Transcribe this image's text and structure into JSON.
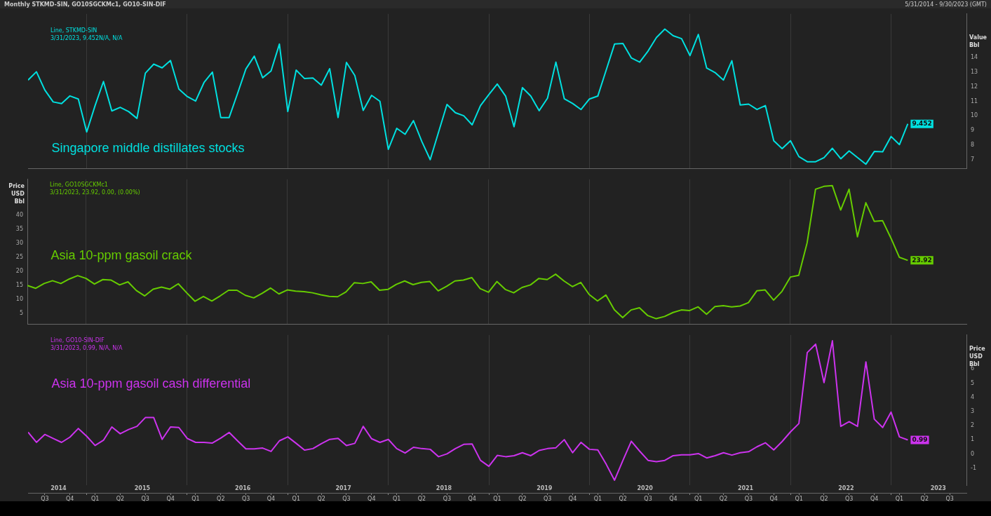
{
  "chart_data": [
    {
      "type": "line",
      "title": "Monthly STKMD-SIN, GO10SGCKMc1, GO10-SIN-DIF",
      "subtitle": "5/31/2014 - 9/30/2023 (GMT)",
      "ylabel": "Value\nBbl",
      "annotations": [
        "Line, STKMD-SIN",
        "3/31/2023, 9.452N/A, N/A"
      ],
      "x": [
        "2014-06",
        "2014-07",
        "2014-08",
        "2014-09",
        "2014-10",
        "2014-11",
        "2014-12",
        "2015-01",
        "2015-02",
        "2015-03",
        "2015-04",
        "2015-05",
        "2015-06",
        "2015-07",
        "2015-08",
        "2015-09",
        "2015-10",
        "2015-11",
        "2015-12",
        "2016-01",
        "2016-02",
        "2016-03",
        "2016-04",
        "2016-05",
        "2016-06",
        "2016-07",
        "2016-08",
        "2016-09",
        "2016-10",
        "2016-11",
        "2016-12",
        "2017-01",
        "2017-02",
        "2017-03",
        "2017-04",
        "2017-05",
        "2017-06",
        "2017-07",
        "2017-08",
        "2017-09",
        "2017-10",
        "2017-11",
        "2017-12",
        "2018-01",
        "2018-02",
        "2018-03",
        "2018-04",
        "2018-05",
        "2018-06",
        "2018-07",
        "2018-08",
        "2018-09",
        "2018-10",
        "2018-11",
        "2018-12",
        "2019-01",
        "2019-02",
        "2019-03",
        "2019-04",
        "2019-05",
        "2019-06",
        "2019-07",
        "2019-08",
        "2019-09",
        "2019-10",
        "2019-11",
        "2019-12",
        "2020-01",
        "2020-02",
        "2020-03",
        "2020-04",
        "2020-05",
        "2020-06",
        "2020-07",
        "2020-08",
        "2020-09",
        "2020-10",
        "2020-11",
        "2020-12",
        "2021-01",
        "2021-02",
        "2021-03",
        "2021-04",
        "2021-05",
        "2021-06",
        "2021-07",
        "2021-08",
        "2021-09",
        "2021-10",
        "2021-11",
        "2021-12",
        "2022-01",
        "2022-02",
        "2022-03",
        "2022-04",
        "2022-05",
        "2022-06",
        "2022-07",
        "2022-08",
        "2022-09",
        "2022-10",
        "2022-11",
        "2022-12",
        "2023-01",
        "2023-02",
        "2023-03"
      ],
      "series": [
        {
          "name": "Singapore middle distillates stocks",
          "color": "#00e0e0",
          "values": [
            12.46,
            13.03,
            11.78,
            10.96,
            10.85,
            11.37,
            11.16,
            8.9,
            10.71,
            12.36,
            10.34,
            10.59,
            10.3,
            9.83,
            12.93,
            13.55,
            13.3,
            13.8,
            11.84,
            11.33,
            11.02,
            12.29,
            13.01,
            9.89,
            9.89,
            11.53,
            13.22,
            14.1,
            12.62,
            13.08,
            14.93,
            10.3,
            13.14,
            12.56,
            12.6,
            12.11,
            13.24,
            9.89,
            13.67,
            12.77,
            10.38,
            11.41,
            11.0,
            7.71,
            9.15,
            8.74,
            9.68,
            8.24,
            7.0,
            8.9,
            10.79,
            10.22,
            10.01,
            9.39,
            10.71,
            11.47,
            12.19,
            11.36,
            9.26,
            11.94,
            11.36,
            10.36,
            11.22,
            13.69,
            11.18,
            10.85,
            10.44,
            11.16,
            11.36,
            13.14,
            14.93,
            14.97,
            13.98,
            13.69,
            14.45,
            15.38,
            15.96,
            15.5,
            15.3,
            14.14,
            15.59,
            13.28,
            12.97,
            12.46,
            13.79,
            10.75,
            10.81,
            10.44,
            10.71,
            8.3,
            7.76,
            8.3,
            7.21,
            6.86,
            6.86,
            7.14,
            7.78,
            7.06,
            7.6,
            7.14,
            6.69,
            7.56,
            7.54,
            8.59,
            8.03,
            9.452
          ],
          "value_labels": [
            null,
            null,
            null,
            null,
            null,
            null,
            null,
            null,
            null,
            null,
            null,
            null,
            null,
            null,
            null,
            null,
            null,
            null,
            null,
            null,
            null,
            null,
            null,
            null,
            null,
            null,
            null,
            null,
            null,
            null,
            null,
            null,
            null,
            null,
            null,
            null,
            null,
            null,
            null,
            null,
            null,
            null,
            null,
            null,
            null,
            null,
            null,
            null,
            null,
            null,
            null,
            null,
            null,
            null,
            null,
            null,
            null,
            null,
            null,
            null,
            null,
            null,
            null,
            null,
            null,
            null,
            null,
            null,
            null,
            null,
            null,
            null,
            null,
            null,
            null,
            null,
            null,
            null,
            null,
            null,
            null,
            null,
            null,
            null,
            null,
            null,
            null,
            null,
            null,
            null,
            null,
            null,
            null,
            null,
            null,
            null,
            null,
            null,
            null,
            null,
            null,
            null,
            null,
            null,
            null,
            "9.452"
          ]
        }
      ],
      "xlim": [
        "2014-06",
        "2023-10"
      ],
      "xticks": [
        {
          "value": "2015-01",
          "label": null
        },
        {
          "value": "2016-01",
          "label": null
        },
        {
          "value": "2017-01",
          "label": null
        },
        {
          "value": "2018-01",
          "label": null
        },
        {
          "value": "2019-01",
          "label": null
        },
        {
          "value": "2020-01",
          "label": null
        },
        {
          "value": "2021-01",
          "label": null
        },
        {
          "value": "2022-01",
          "label": null
        },
        {
          "value": "2023-01",
          "label": null
        }
      ],
      "ylim": [
        6.4,
        17
      ],
      "yticks": [
        7,
        8,
        9,
        10,
        11,
        12,
        13,
        14
      ],
      "grid": "x",
      "tick_labels": "y"
    },
    {
      "type": "line",
      "ylabel": "Price\nUSD\nBbl",
      "annotations": [
        "Line, GO10SGCKMc1",
        "3/31/2023, 23.92, 0.00, (0.00%)"
      ],
      "x": [
        "2014-06",
        "2014-07",
        "2014-08",
        "2014-09",
        "2014-10",
        "2014-11",
        "2014-12",
        "2015-01",
        "2015-02",
        "2015-03",
        "2015-04",
        "2015-05",
        "2015-06",
        "2015-07",
        "2015-08",
        "2015-09",
        "2015-10",
        "2015-11",
        "2015-12",
        "2016-01",
        "2016-02",
        "2016-03",
        "2016-04",
        "2016-05",
        "2016-06",
        "2016-07",
        "2016-08",
        "2016-09",
        "2016-10",
        "2016-11",
        "2016-12",
        "2017-01",
        "2017-02",
        "2017-03",
        "2017-04",
        "2017-05",
        "2017-06",
        "2017-07",
        "2017-08",
        "2017-09",
        "2017-10",
        "2017-11",
        "2017-12",
        "2018-01",
        "2018-02",
        "2018-03",
        "2018-04",
        "2018-05",
        "2018-06",
        "2018-07",
        "2018-08",
        "2018-09",
        "2018-10",
        "2018-11",
        "2018-12",
        "2019-01",
        "2019-02",
        "2019-03",
        "2019-04",
        "2019-05",
        "2019-06",
        "2019-07",
        "2019-08",
        "2019-09",
        "2019-10",
        "2019-11",
        "2019-12",
        "2020-01",
        "2020-02",
        "2020-03",
        "2020-04",
        "2020-05",
        "2020-06",
        "2020-07",
        "2020-08",
        "2020-09",
        "2020-10",
        "2020-11",
        "2020-12",
        "2021-01",
        "2021-02",
        "2021-03",
        "2021-04",
        "2021-05",
        "2021-06",
        "2021-07",
        "2021-08",
        "2021-09",
        "2021-10",
        "2021-11",
        "2021-12",
        "2022-01",
        "2022-02",
        "2022-03",
        "2022-04",
        "2022-05",
        "2022-06",
        "2022-07",
        "2022-08",
        "2022-09",
        "2022-10",
        "2022-11",
        "2022-12",
        "2023-01",
        "2023-02",
        "2023-03"
      ],
      "series": [
        {
          "name": "Asia 10-ppm gasoil crack",
          "color": "#66cc00",
          "values": [
            15.0,
            14.0,
            15.7,
            16.7,
            15.7,
            17.3,
            18.5,
            17.5,
            15.5,
            17.1,
            16.9,
            15.2,
            16.3,
            13.2,
            11.3,
            13.7,
            14.4,
            13.7,
            15.6,
            12.4,
            9.4,
            11.1,
            9.5,
            11.3,
            13.3,
            13.3,
            11.5,
            10.6,
            12.2,
            14.1,
            12.0,
            13.4,
            13.0,
            12.8,
            12.4,
            11.7,
            11.1,
            11.0,
            12.7,
            16.0,
            15.7,
            16.3,
            13.3,
            13.6,
            15.4,
            16.6,
            15.3,
            16.1,
            16.4,
            13.1,
            14.7,
            16.6,
            16.9,
            17.8,
            13.9,
            12.6,
            16.4,
            13.6,
            12.4,
            14.3,
            15.2,
            17.5,
            17.1,
            19.0,
            16.6,
            14.6,
            16.1,
            11.8,
            9.5,
            11.6,
            6.4,
            3.6,
            6.3,
            7.1,
            4.3,
            3.2,
            4.0,
            5.4,
            6.3,
            6.1,
            7.4,
            4.8,
            7.5,
            7.8,
            7.4,
            7.7,
            8.9,
            13.1,
            13.4,
            9.8,
            12.9,
            18.0,
            18.6,
            30.2,
            49.2,
            50.2,
            50.5,
            41.8,
            49.2,
            32.3,
            44.4,
            37.8,
            38.0,
            31.8,
            25.0,
            23.92
          ],
          "value_labels": [
            null,
            null,
            null,
            null,
            null,
            null,
            null,
            null,
            null,
            null,
            null,
            null,
            null,
            null,
            null,
            null,
            null,
            null,
            null,
            null,
            null,
            null,
            null,
            null,
            null,
            null,
            null,
            null,
            null,
            null,
            null,
            null,
            null,
            null,
            null,
            null,
            null,
            null,
            null,
            null,
            null,
            null,
            null,
            null,
            null,
            null,
            null,
            null,
            null,
            null,
            null,
            null,
            null,
            null,
            null,
            null,
            null,
            null,
            null,
            null,
            null,
            null,
            null,
            null,
            null,
            null,
            null,
            null,
            null,
            null,
            null,
            null,
            null,
            null,
            null,
            null,
            null,
            null,
            null,
            null,
            null,
            null,
            null,
            null,
            null,
            null,
            null,
            null,
            null,
            null,
            null,
            null,
            null,
            null,
            null,
            null,
            null,
            null,
            null,
            null,
            null,
            null,
            null,
            null,
            null,
            "23.92"
          ]
        }
      ],
      "xlim": [
        "2014-06",
        "2023-10"
      ],
      "xticks": [
        {
          "value": "2015-01",
          "label": null
        },
        {
          "value": "2016-01",
          "label": null
        },
        {
          "value": "2017-01",
          "label": null
        },
        {
          "value": "2018-01",
          "label": null
        },
        {
          "value": "2019-01",
          "label": null
        },
        {
          "value": "2020-01",
          "label": null
        },
        {
          "value": "2021-01",
          "label": null
        },
        {
          "value": "2022-01",
          "label": null
        },
        {
          "value": "2023-01",
          "label": null
        }
      ],
      "ylim": [
        1.3,
        52.7
      ],
      "yticks": [
        5,
        10,
        15,
        20,
        25,
        30,
        35,
        40
      ],
      "grid": "x",
      "tick_labels": "y"
    },
    {
      "type": "line",
      "ylabel": "Price\nUSD\nBbl",
      "annotations": [
        "Line, GO10-SIN-DIF",
        "3/31/2023, 0.99, N/A, N/A"
      ],
      "x": [
        "2014-06",
        "2014-07",
        "2014-08",
        "2014-09",
        "2014-10",
        "2014-11",
        "2014-12",
        "2015-01",
        "2015-02",
        "2015-03",
        "2015-04",
        "2015-05",
        "2015-06",
        "2015-07",
        "2015-08",
        "2015-09",
        "2015-10",
        "2015-11",
        "2015-12",
        "2016-01",
        "2016-02",
        "2016-03",
        "2016-04",
        "2016-05",
        "2016-06",
        "2016-07",
        "2016-08",
        "2016-09",
        "2016-10",
        "2016-11",
        "2016-12",
        "2017-01",
        "2017-02",
        "2017-03",
        "2017-04",
        "2017-05",
        "2017-06",
        "2017-07",
        "2017-08",
        "2017-09",
        "2017-10",
        "2017-11",
        "2017-12",
        "2018-01",
        "2018-02",
        "2018-03",
        "2018-04",
        "2018-05",
        "2018-06",
        "2018-07",
        "2018-08",
        "2018-09",
        "2018-10",
        "2018-11",
        "2018-12",
        "2019-01",
        "2019-02",
        "2019-03",
        "2019-04",
        "2019-05",
        "2019-06",
        "2019-07",
        "2019-08",
        "2019-09",
        "2019-10",
        "2019-11",
        "2019-12",
        "2020-01",
        "2020-02",
        "2020-03",
        "2020-04",
        "2020-05",
        "2020-06",
        "2020-07",
        "2020-08",
        "2020-09",
        "2020-10",
        "2020-11",
        "2020-12",
        "2021-01",
        "2021-02",
        "2021-03",
        "2021-04",
        "2021-05",
        "2021-06",
        "2021-07",
        "2021-08",
        "2021-09",
        "2021-10",
        "2021-11",
        "2021-12",
        "2022-01",
        "2022-02",
        "2022-03",
        "2022-04",
        "2022-05",
        "2022-06",
        "2022-07",
        "2022-08",
        "2022-09",
        "2022-10",
        "2022-11",
        "2022-12",
        "2023-01",
        "2023-02",
        "2023-03"
      ],
      "series": [
        {
          "name": "Asia 10-ppm gasoil cash differential",
          "color": "#cc33ee",
          "values": [
            1.54,
            0.82,
            1.38,
            1.1,
            0.82,
            1.19,
            1.8,
            1.25,
            0.6,
            0.97,
            1.91,
            1.43,
            1.73,
            1.95,
            2.57,
            2.57,
            1.03,
            1.91,
            1.87,
            1.1,
            0.82,
            0.82,
            0.77,
            1.12,
            1.52,
            0.93,
            0.36,
            0.36,
            0.42,
            0.18,
            0.93,
            1.21,
            0.75,
            0.27,
            0.38,
            0.73,
            1.03,
            1.1,
            0.6,
            0.75,
            1.95,
            1.08,
            0.82,
            1.03,
            0.38,
            0.07,
            0.47,
            0.38,
            0.33,
            -0.19,
            0.01,
            0.38,
            0.68,
            0.71,
            -0.45,
            -0.87,
            -0.1,
            -0.19,
            -0.12,
            0.09,
            -0.12,
            0.25,
            0.38,
            0.44,
            1.01,
            0.09,
            0.82,
            0.33,
            0.29,
            -0.72,
            -1.85,
            -0.45,
            0.9,
            0.2,
            -0.45,
            -0.54,
            -0.45,
            -0.12,
            -0.06,
            -0.06,
            0.03,
            -0.28,
            -0.12,
            0.09,
            -0.08,
            0.09,
            0.16,
            0.51,
            0.79,
            0.29,
            0.88,
            1.56,
            2.15,
            7.16,
            7.75,
            5.04,
            7.99,
            1.95,
            2.28,
            1.95,
            6.5,
            2.46,
            1.87,
            2.96,
            1.21,
            0.99
          ],
          "value_labels": [
            null,
            null,
            null,
            null,
            null,
            null,
            null,
            null,
            null,
            null,
            null,
            null,
            null,
            null,
            null,
            null,
            null,
            null,
            null,
            null,
            null,
            null,
            null,
            null,
            null,
            null,
            null,
            null,
            null,
            null,
            null,
            null,
            null,
            null,
            null,
            null,
            null,
            null,
            null,
            null,
            null,
            null,
            null,
            null,
            null,
            null,
            null,
            null,
            null,
            null,
            null,
            null,
            null,
            null,
            null,
            null,
            null,
            null,
            null,
            null,
            null,
            null,
            null,
            null,
            null,
            null,
            null,
            null,
            null,
            null,
            null,
            null,
            null,
            null,
            null,
            null,
            null,
            null,
            null,
            null,
            null,
            null,
            null,
            null,
            null,
            null,
            null,
            null,
            null,
            null,
            null,
            null,
            null,
            null,
            null,
            null,
            null,
            null,
            null,
            null,
            null,
            null,
            null,
            null,
            null,
            "0.99"
          ]
        }
      ],
      "xlim": [
        "2014-06",
        "2023-10"
      ],
      "xticks": [
        {
          "value": "2015-01",
          "label": null
        },
        {
          "value": "2016-01",
          "label": null
        },
        {
          "value": "2017-01",
          "label": null
        },
        {
          "value": "2018-01",
          "label": null
        },
        {
          "value": "2019-01",
          "label": null
        },
        {
          "value": "2020-01",
          "label": null
        },
        {
          "value": "2021-01",
          "label": null
        },
        {
          "value": "2022-01",
          "label": null
        },
        {
          "value": "2023-01",
          "label": null
        },
        {
          "value": "2014-08",
          "label": "Q3"
        },
        {
          "value": "2014-11",
          "label": "Q4"
        },
        {
          "value": "2015-02",
          "label": "Q1"
        },
        {
          "value": "2015-05",
          "label": "Q2"
        },
        {
          "value": "2015-08",
          "label": "Q3"
        },
        {
          "value": "2015-11",
          "label": "Q4"
        },
        {
          "value": "2016-02",
          "label": "Q1"
        },
        {
          "value": "2016-05",
          "label": "Q2"
        },
        {
          "value": "2016-08",
          "label": "Q3"
        },
        {
          "value": "2016-11",
          "label": "Q4"
        },
        {
          "value": "2017-02",
          "label": "Q1"
        },
        {
          "value": "2017-05",
          "label": "Q2"
        },
        {
          "value": "2017-08",
          "label": "Q3"
        },
        {
          "value": "2017-11",
          "label": "Q4"
        },
        {
          "value": "2018-02",
          "label": "Q1"
        },
        {
          "value": "2018-05",
          "label": "Q2"
        },
        {
          "value": "2018-08",
          "label": "Q3"
        },
        {
          "value": "2018-11",
          "label": "Q4"
        },
        {
          "value": "2019-02",
          "label": "Q1"
        },
        {
          "value": "2019-05",
          "label": "Q2"
        },
        {
          "value": "2019-08",
          "label": "Q3"
        },
        {
          "value": "2019-11",
          "label": "Q4"
        },
        {
          "value": "2020-02",
          "label": "Q1"
        },
        {
          "value": "2020-05",
          "label": "Q2"
        },
        {
          "value": "2020-08",
          "label": "Q3"
        },
        {
          "value": "2020-11",
          "label": "Q4"
        },
        {
          "value": "2021-02",
          "label": "Q1"
        },
        {
          "value": "2021-05",
          "label": "Q2"
        },
        {
          "value": "2021-08",
          "label": "Q3"
        },
        {
          "value": "2021-11",
          "label": "Q4"
        },
        {
          "value": "2022-02",
          "label": "Q1"
        },
        {
          "value": "2022-05",
          "label": "Q2"
        },
        {
          "value": "2022-08",
          "label": "Q3"
        },
        {
          "value": "2022-11",
          "label": "Q4"
        },
        {
          "value": "2023-02",
          "label": "Q1"
        },
        {
          "value": "2023-05",
          "label": "Q2"
        },
        {
          "value": "2023-08",
          "label": "Q3"
        }
      ],
      "x2lim": [
        "2014-06",
        "2023-10"
      ],
      "x2ticks": [
        {
          "value": "2014-09-20",
          "label": "2014"
        },
        {
          "value": "2015-07-20",
          "label": "2015"
        },
        {
          "value": "2016-07-20",
          "label": "2016"
        },
        {
          "value": "2017-07-20",
          "label": "2017"
        },
        {
          "value": "2018-07-20",
          "label": "2018"
        },
        {
          "value": "2019-07-20",
          "label": "2019"
        },
        {
          "value": "2020-07-20",
          "label": "2020"
        },
        {
          "value": "2021-07-20",
          "label": "2021"
        },
        {
          "value": "2022-07-20",
          "label": "2022"
        },
        {
          "value": "2023-06-20",
          "label": "2023"
        }
      ],
      "ylim": [
        -2.2,
        8.4
      ],
      "yticks": [
        -1,
        0,
        1,
        2,
        3,
        4,
        5,
        6
      ],
      "grid": "x"
    }
  ]
}
